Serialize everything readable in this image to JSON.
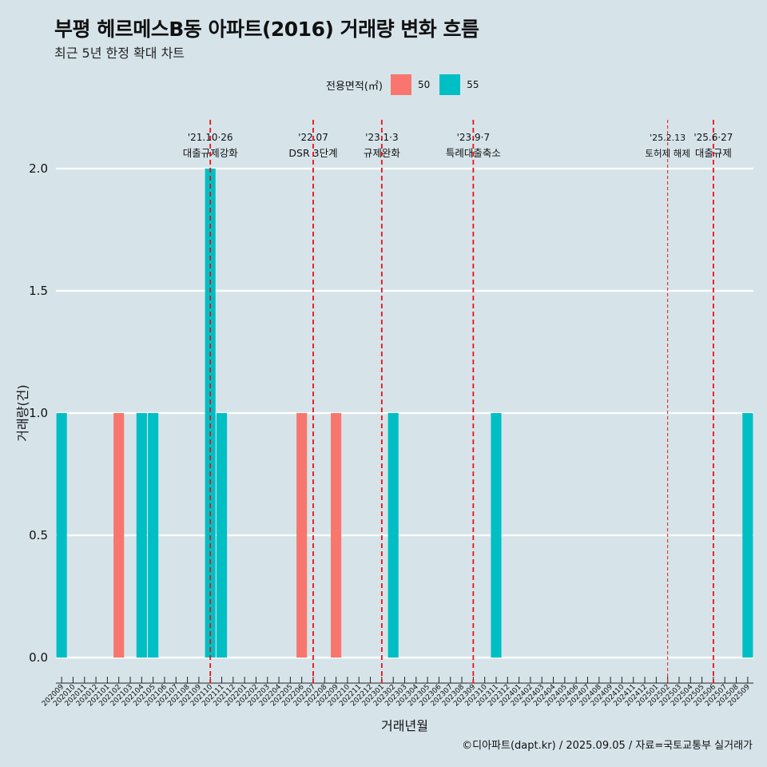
{
  "title": "부평 헤르메스B동 아파트(2016) 거래량 변화 흐름",
  "subtitle": "최근 5년 한정 확대 차트",
  "legend": {
    "title": "전용면적(㎡)",
    "items": [
      {
        "label": "50",
        "color": "#F8766D"
      },
      {
        "label": "55",
        "color": "#00BFC4"
      }
    ]
  },
  "footer": "©디아파트(dapt.kr) / 2025.09.05 / 자료=국토교통부 실거래가",
  "chart_data": {
    "type": "bar",
    "xlabel": "거래년월",
    "ylabel": "거래량(건)",
    "ylim": [
      0,
      2
    ],
    "yticks": [
      "0.0",
      "0.5",
      "1.0",
      "1.5",
      "2.0"
    ],
    "grid": true,
    "legend_position": "top",
    "categories": [
      "202009",
      "202010",
      "202011",
      "202012",
      "202101",
      "202102",
      "202103",
      "202104",
      "202105",
      "202106",
      "202107",
      "202108",
      "202109",
      "202110",
      "202111",
      "202112",
      "202201",
      "202202",
      "202203",
      "202204",
      "202205",
      "202206",
      "202207",
      "202208",
      "202209",
      "202210",
      "202211",
      "202212",
      "202301",
      "202302",
      "202303",
      "202304",
      "202305",
      "202306",
      "202307",
      "202308",
      "202309",
      "202310",
      "202311",
      "202312",
      "202401",
      "202402",
      "202403",
      "202404",
      "202405",
      "202406",
      "202407",
      "202408",
      "202409",
      "202410",
      "202411",
      "202412",
      "202501",
      "202502",
      "202503",
      "202504",
      "202505",
      "202506",
      "202507",
      "202508",
      "202509"
    ],
    "series": [
      {
        "name": "50",
        "color": "#F8766D",
        "points": [
          {
            "x": "202102",
            "y": 1
          },
          {
            "x": "202206",
            "y": 1
          },
          {
            "x": "202209",
            "y": 1
          }
        ]
      },
      {
        "name": "55",
        "color": "#00BFC4",
        "points": [
          {
            "x": "202009",
            "y": 1
          },
          {
            "x": "202104",
            "y": 1
          },
          {
            "x": "202105",
            "y": 1
          },
          {
            "x": "202110",
            "y": 2
          },
          {
            "x": "202111",
            "y": 1
          },
          {
            "x": "202302",
            "y": 1
          },
          {
            "x": "202311",
            "y": 1
          },
          {
            "x": "202509",
            "y": 1
          }
        ]
      }
    ],
    "events": [
      {
        "x": "202110",
        "date": "'21.10·26",
        "label": "대출규제강화",
        "style": "bold"
      },
      {
        "x": "202207",
        "date": "'22.07",
        "label": "DSR 3단계",
        "style": "bold"
      },
      {
        "x": "202301",
        "date": "'23.1·3",
        "label": "규제완화",
        "style": "bold"
      },
      {
        "x": "202309",
        "date": "'23.9·7",
        "label": "특례대출축소",
        "style": "bold"
      },
      {
        "x": "202502",
        "date": "'25.2.13",
        "label": "토허제 해제",
        "style": "thin"
      },
      {
        "x": "202506",
        "date": "'25.6·27",
        "label": "대출규제",
        "style": "bold"
      }
    ]
  }
}
